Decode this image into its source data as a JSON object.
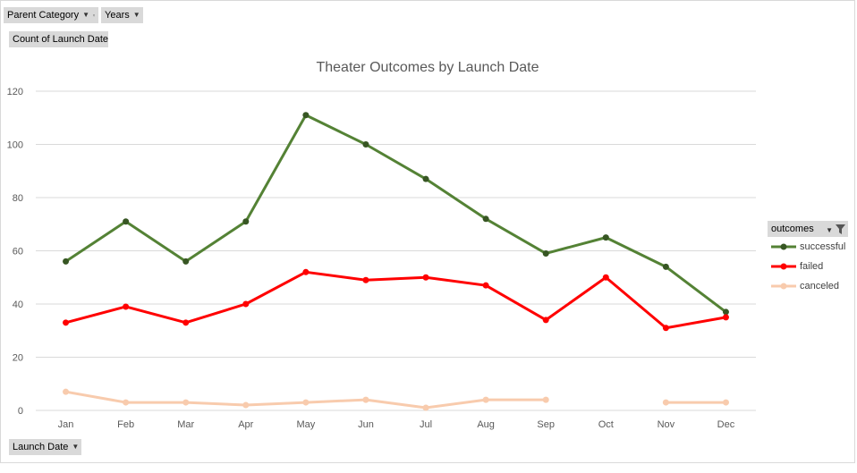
{
  "pivot_buttons": {
    "parent_category": "Parent Category",
    "years": "Years",
    "value_field": "Count of Launch Date",
    "launch_date": "Launch Date",
    "outcomes": "outcomes"
  },
  "colors": {
    "successful": "#548235",
    "successful_marker": "#375623",
    "failed": "#ff0000",
    "canceled": "#f8cbad",
    "grid": "#d9d9d9",
    "axis_text": "#595959",
    "button_bg": "#d9d9d9"
  },
  "chart_data": {
    "type": "line",
    "title": "Theater Outcomes by Launch Date",
    "xlabel": "",
    "ylabel": "",
    "categories": [
      "Jan",
      "Feb",
      "Mar",
      "Apr",
      "May",
      "Jun",
      "Jul",
      "Aug",
      "Sep",
      "Oct",
      "Nov",
      "Dec"
    ],
    "ylim": [
      0,
      120
    ],
    "yticks": [
      0,
      20,
      40,
      60,
      80,
      100,
      120
    ],
    "grid": true,
    "legend_position": "right",
    "series": [
      {
        "name": "successful",
        "values": [
          56,
          71,
          56,
          71,
          111,
          100,
          87,
          72,
          59,
          65,
          54,
          37
        ]
      },
      {
        "name": "failed",
        "values": [
          33,
          39,
          33,
          40,
          52,
          49,
          50,
          47,
          34,
          50,
          31,
          35
        ]
      },
      {
        "name": "canceled",
        "values": [
          7,
          3,
          3,
          2,
          3,
          4,
          1,
          4,
          4,
          null,
          3,
          3
        ]
      }
    ]
  }
}
